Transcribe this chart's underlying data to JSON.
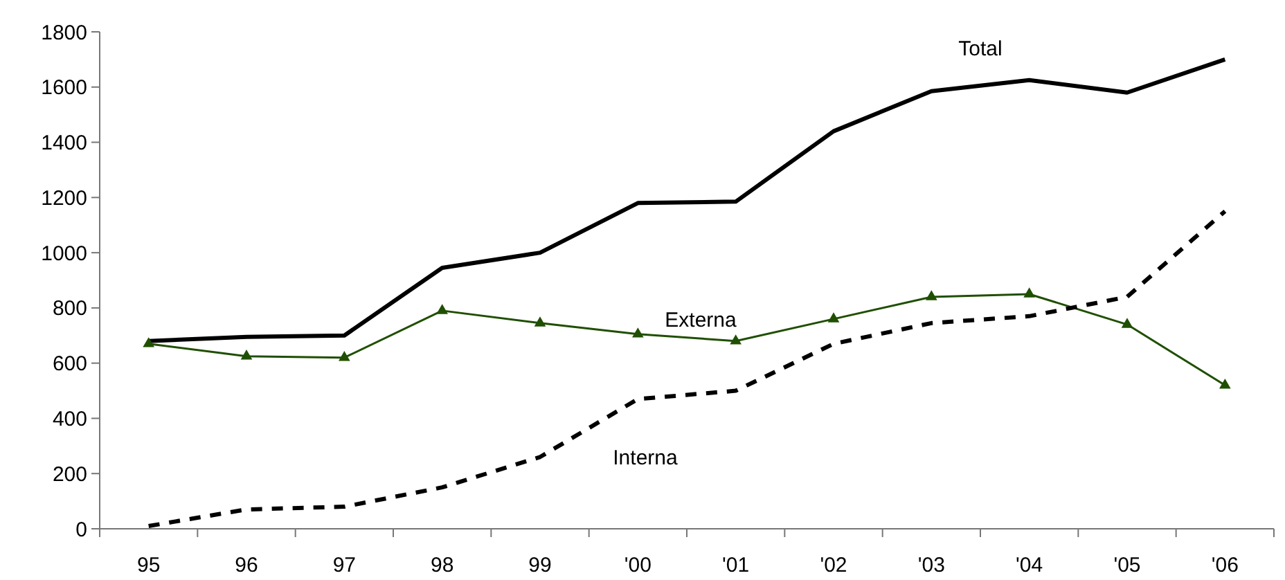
{
  "chart_data": {
    "type": "line",
    "categories": [
      "95",
      "96",
      "97",
      "98",
      "99",
      "'00",
      "'01",
      "'02",
      "'03",
      "'04",
      "'05",
      "'06"
    ],
    "series": [
      {
        "name": "Total",
        "color": "#000000",
        "marker": "none",
        "line_style": "solid",
        "values": [
          680,
          695,
          700,
          945,
          1000,
          1180,
          1185,
          1440,
          1585,
          1625,
          1580,
          1700
        ]
      },
      {
        "name": "Externa",
        "color": "#1f4f00",
        "marker": "triangle",
        "line_style": "solid",
        "values": [
          670,
          625,
          620,
          790,
          745,
          705,
          680,
          760,
          840,
          850,
          740,
          520
        ]
      },
      {
        "name": "Interna",
        "color": "#000000",
        "marker": "none",
        "line_style": "dashed",
        "values": [
          10,
          70,
          80,
          150,
          260,
          470,
          500,
          670,
          745,
          770,
          840,
          1150
        ]
      }
    ],
    "ylim": [
      0,
      1800
    ],
    "yticks": [
      0,
      200,
      400,
      600,
      800,
      1000,
      1200,
      1400,
      1600,
      1800
    ],
    "grid": false
  }
}
